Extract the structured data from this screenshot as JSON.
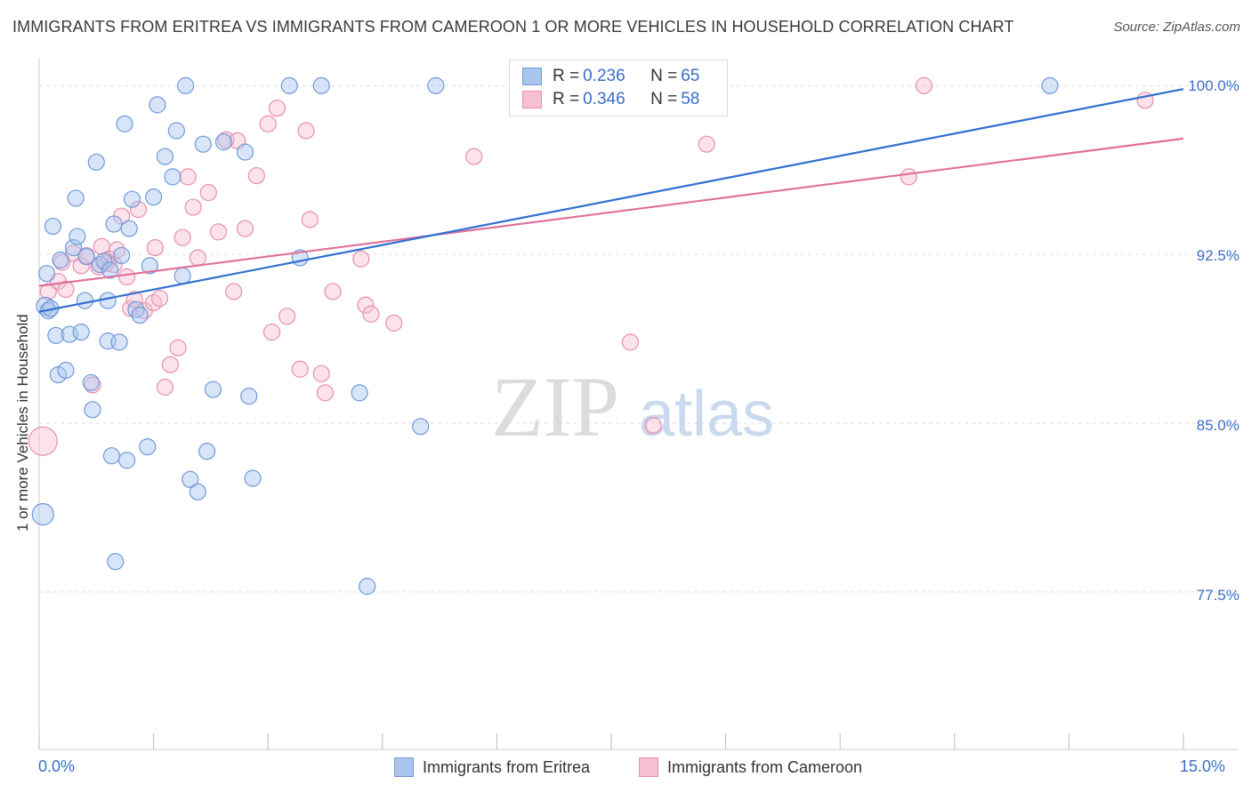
{
  "header": {
    "title": "IMMIGRANTS FROM ERITREA VS IMMIGRANTS FROM CAMEROON 1 OR MORE VEHICLES IN HOUSEHOLD CORRELATION CHART",
    "source": "Source: ZipAtlas.com"
  },
  "watermark": {
    "zip": "ZIP",
    "atlas": "atlas"
  },
  "legend_top": {
    "eritrea": {
      "r_label": "R = ",
      "r_value": "0.236",
      "n_label": "N = ",
      "n_value": "65"
    },
    "cameroon": {
      "r_label": "R = ",
      "r_value": "0.346",
      "n_label": "N = ",
      "n_value": "58"
    }
  },
  "colors": {
    "eritrea_fill": "#a9c6ef",
    "eritrea_stroke": "#6f9ad8",
    "eritrea_line": "#2f6fcf",
    "cameroon_fill": "#f6bfd2",
    "cameroon_stroke": "#e88fb0",
    "cameroon_line": "#e07099",
    "axis_text": "#3b6ec5",
    "grid": "#dddddd"
  },
  "chart_data": {
    "type": "scatter",
    "title": "IMMIGRANTS FROM ERITREA VS IMMIGRANTS FROM CAMEROON 1 OR MORE VEHICLES IN HOUSEHOLD CORRELATION CHART",
    "xlabel": "",
    "ylabel": "1 or more Vehicles in Household",
    "xlim": [
      0,
      15
    ],
    "ylim": [
      70.5,
      101.2
    ],
    "x_tick_labels": [
      "0.0%",
      "15.0%"
    ],
    "y_ticks": [
      77.5,
      85.0,
      92.5,
      100.0
    ],
    "y_tick_labels": [
      "77.5%",
      "85.0%",
      "92.5%",
      "100.0%"
    ],
    "grid": true,
    "legend_placement": "bottom",
    "series": [
      {
        "name": "Immigrants from Eritrea",
        "r": 0.236,
        "n": 65,
        "trend": {
          "x": [
            0,
            15
          ],
          "y": [
            89.95,
            99.85
          ]
        },
        "points": [
          [
            0.05,
            80.95,
            12
          ],
          [
            0.08,
            90.2,
            10
          ],
          [
            0.1,
            91.65,
            9
          ],
          [
            0.12,
            90.0,
            9
          ],
          [
            0.15,
            90.1,
            9
          ],
          [
            0.18,
            93.75,
            9
          ],
          [
            0.22,
            88.9,
            9
          ],
          [
            0.25,
            87.15,
            9
          ],
          [
            0.28,
            92.25,
            9
          ],
          [
            0.35,
            87.35,
            9
          ],
          [
            0.4,
            88.95,
            9
          ],
          [
            0.45,
            92.8,
            9
          ],
          [
            0.48,
            95.0,
            9
          ],
          [
            0.5,
            93.3,
            9
          ],
          [
            0.55,
            89.05,
            9
          ],
          [
            0.6,
            90.45,
            9
          ],
          [
            0.62,
            92.4,
            9
          ],
          [
            0.68,
            86.8,
            9
          ],
          [
            0.7,
            85.6,
            9
          ],
          [
            0.75,
            96.6,
            9
          ],
          [
            0.8,
            92.05,
            9
          ],
          [
            0.85,
            92.2,
            9
          ],
          [
            0.9,
            88.65,
            9
          ],
          [
            0.9,
            90.45,
            9
          ],
          [
            0.93,
            91.8,
            9
          ],
          [
            0.95,
            83.55,
            9
          ],
          [
            0.98,
            93.85,
            9
          ],
          [
            1.0,
            78.85,
            9
          ],
          [
            1.05,
            88.6,
            9
          ],
          [
            1.08,
            92.45,
            9
          ],
          [
            1.12,
            98.3,
            9
          ],
          [
            1.15,
            83.35,
            9
          ],
          [
            1.18,
            93.65,
            9
          ],
          [
            1.22,
            94.95,
            9
          ],
          [
            1.27,
            90.05,
            9
          ],
          [
            1.32,
            89.8,
            9
          ],
          [
            1.42,
            83.95,
            9
          ],
          [
            1.45,
            92.0,
            9
          ],
          [
            1.5,
            95.05,
            9
          ],
          [
            1.55,
            99.15,
            9
          ],
          [
            1.65,
            96.85,
            9
          ],
          [
            1.75,
            95.95,
            9
          ],
          [
            1.8,
            98.0,
            9
          ],
          [
            1.88,
            91.55,
            9
          ],
          [
            1.92,
            100.0,
            9
          ],
          [
            1.98,
            82.5,
            9
          ],
          [
            2.08,
            81.95,
            9
          ],
          [
            2.15,
            97.4,
            9
          ],
          [
            2.2,
            83.75,
            9
          ],
          [
            2.28,
            86.5,
            9
          ],
          [
            2.42,
            97.5,
            9
          ],
          [
            2.7,
            97.05,
            9
          ],
          [
            2.75,
            86.2,
            9
          ],
          [
            2.8,
            82.55,
            9
          ],
          [
            3.28,
            100.0,
            9
          ],
          [
            3.42,
            92.35,
            9
          ],
          [
            3.7,
            100.0,
            9
          ],
          [
            4.2,
            86.35,
            9
          ],
          [
            4.3,
            77.75,
            9
          ],
          [
            5.0,
            84.85,
            9
          ],
          [
            5.2,
            100.0,
            9
          ],
          [
            13.25,
            100.0,
            9
          ]
        ]
      },
      {
        "name": "Immigrants from Cameroon",
        "r": 0.346,
        "n": 58,
        "trend": {
          "x": [
            0,
            15
          ],
          "y": [
            91.1,
            97.65
          ]
        },
        "points": [
          [
            0.05,
            84.2,
            16
          ],
          [
            0.12,
            90.85,
            9
          ],
          [
            0.25,
            91.3,
            9
          ],
          [
            0.3,
            92.15,
            9
          ],
          [
            0.35,
            90.95,
            9
          ],
          [
            0.45,
            92.55,
            9
          ],
          [
            0.55,
            92.0,
            9
          ],
          [
            0.62,
            92.45,
            9
          ],
          [
            0.7,
            86.7,
            9
          ],
          [
            0.78,
            91.95,
            9
          ],
          [
            0.82,
            92.85,
            9
          ],
          [
            0.88,
            92.1,
            9
          ],
          [
            0.92,
            92.3,
            9
          ],
          [
            0.98,
            92.05,
            9
          ],
          [
            1.02,
            92.7,
            9
          ],
          [
            1.08,
            94.2,
            9
          ],
          [
            1.15,
            91.5,
            9
          ],
          [
            1.2,
            90.1,
            9
          ],
          [
            1.25,
            90.5,
            9
          ],
          [
            1.3,
            94.5,
            9
          ],
          [
            1.38,
            90.0,
            9
          ],
          [
            1.5,
            90.35,
            9
          ],
          [
            1.52,
            92.8,
            9
          ],
          [
            1.58,
            90.55,
            9
          ],
          [
            1.65,
            86.6,
            9
          ],
          [
            1.72,
            87.6,
            9
          ],
          [
            1.82,
            88.35,
            9
          ],
          [
            1.88,
            93.25,
            9
          ],
          [
            1.95,
            95.95,
            9
          ],
          [
            2.02,
            94.6,
            9
          ],
          [
            2.08,
            92.35,
            9
          ],
          [
            2.22,
            95.25,
            9
          ],
          [
            2.35,
            93.5,
            9
          ],
          [
            2.45,
            97.6,
            9
          ],
          [
            2.55,
            90.85,
            9
          ],
          [
            2.6,
            97.55,
            9
          ],
          [
            2.7,
            93.65,
            9
          ],
          [
            2.85,
            96.0,
            9
          ],
          [
            3.0,
            98.3,
            9
          ],
          [
            3.05,
            89.05,
            9
          ],
          [
            3.12,
            99.0,
            9
          ],
          [
            3.25,
            89.75,
            9
          ],
          [
            3.42,
            87.4,
            9
          ],
          [
            3.5,
            98.0,
            9
          ],
          [
            3.55,
            94.05,
            9
          ],
          [
            3.7,
            87.2,
            9
          ],
          [
            3.75,
            86.35,
            9
          ],
          [
            3.85,
            90.85,
            9
          ],
          [
            4.22,
            92.3,
            9
          ],
          [
            4.28,
            90.25,
            9
          ],
          [
            4.35,
            89.85,
            9
          ],
          [
            4.65,
            89.45,
            9
          ],
          [
            5.7,
            96.85,
            9
          ],
          [
            7.75,
            88.6,
            9
          ],
          [
            8.05,
            84.9,
            9
          ],
          [
            8.75,
            97.4,
            9
          ],
          [
            11.4,
            95.95,
            9
          ],
          [
            11.6,
            100.0,
            9
          ],
          [
            14.5,
            99.35,
            9
          ]
        ]
      }
    ]
  },
  "axes": {
    "x_min_label": "0.0%",
    "x_max_label": "15.0%",
    "ylabel": "1 or more Vehicles in Household",
    "y_labels": [
      "100.0%",
      "92.5%",
      "85.0%",
      "77.5%"
    ]
  },
  "bottom_legend": {
    "eritrea": "Immigrants from Eritrea",
    "cameroon": "Immigrants from Cameroon"
  }
}
